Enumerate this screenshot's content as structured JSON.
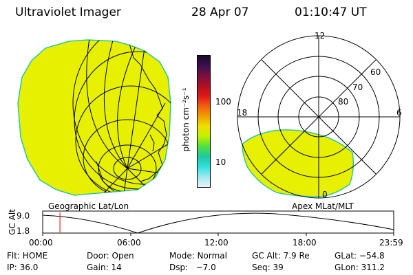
{
  "header": {
    "instrument": "Ultraviolet Imager",
    "date": "28 Apr 07",
    "time": "01:10:47 UT"
  },
  "colors": {
    "image_fill": "#e6f000",
    "image_edge": "#28c8a0",
    "grid": "#000000",
    "time_marker": "#e00000"
  },
  "colorbar": {
    "label": "photon cm⁻²s⁻¹",
    "ticks": [
      "100",
      "10"
    ],
    "stops": [
      "#1a0a2a",
      "#3a1050",
      "#7a1040",
      "#b01020",
      "#e01818",
      "#f06010",
      "#f0a000",
      "#f0e000",
      "#c0f000",
      "#50e040",
      "#20c8a0",
      "#30e0e0",
      "#a0e8f0",
      "#e8f4f8"
    ]
  },
  "polar": {
    "ring_labels": [
      "80",
      "70",
      "60"
    ],
    "mlt_labels": {
      "top": "12",
      "left": "18",
      "right": "6",
      "bottom": "0"
    }
  },
  "labels": {
    "left_panel": "Geographic Lat/Lon",
    "right_panel": "Apex MLat/MLT"
  },
  "altitude_plot": {
    "ylabel": "GC Alt",
    "yticks": [
      "9.0",
      "1.8"
    ],
    "xticks": [
      "00:00",
      "06:00",
      "12:00",
      "18:00",
      "23:59"
    ],
    "marker_time_hours": 1.18
  },
  "info": {
    "row1": {
      "flt": "Flt: HOME",
      "door": "Door: Open",
      "mode": "Mode: Normal",
      "gc_alt": "GC Alt: 7.9 Re",
      "glat": "GLat: −54.8"
    },
    "row2": {
      "ip": "IP: 36.0",
      "gain": "Gain: 14",
      "dsp": "Dsp:   −7.0",
      "seq": "Seq: 39",
      "glon": "GLon: 311.2"
    }
  }
}
